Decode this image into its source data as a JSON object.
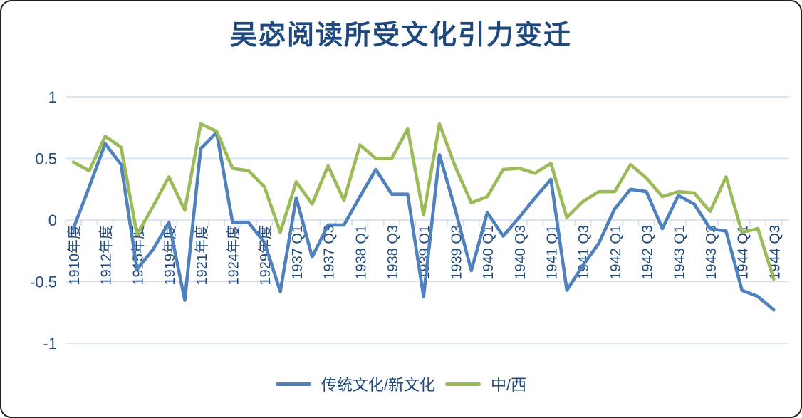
{
  "title": "吴宓阅读所受文化引力变迁",
  "colors": {
    "series1_blue": "#4F81BD",
    "series2_green": "#9BBB59",
    "text_navy": "#1F497D",
    "gridline": "#D3DEEE",
    "background": "#FFFFFF",
    "frame_border": "#1F1F1F"
  },
  "legend": {
    "position": "bottom"
  },
  "chart_data": {
    "type": "line",
    "title": "吴宓阅读所受文化引力变迁",
    "xlabel": "",
    "ylabel": "",
    "ylim": [
      -1,
      1
    ],
    "grid": true,
    "legend_position": "bottom",
    "yticks": [
      {
        "label": "1",
        "value": 1
      },
      {
        "label": "0.5",
        "value": 0.5
      },
      {
        "label": "0",
        "value": 0
      },
      {
        "label": "-0.5",
        "value": -0.5
      },
      {
        "label": "-1",
        "value": -1
      }
    ],
    "x_labels": [
      "1910年度",
      "",
      "1912年度",
      "",
      "1915年度",
      "",
      "1919年度",
      "",
      "1921年度",
      "",
      "1924年度",
      "",
      "1929年度",
      "",
      "1937 Q1",
      "",
      "1937 Q3",
      "",
      "1938 Q1",
      "",
      "1938 Q3",
      "",
      "1939 Q1",
      "",
      "1939 Q3",
      "",
      "1940 Q1",
      "",
      "1940 Q3",
      "",
      "1941 Q1",
      "",
      "1941 Q3",
      "",
      "1942 Q1",
      "",
      "1942 Q3",
      "",
      "1943 Q1",
      "",
      "1943 Q3",
      "",
      "1944 Q1",
      "",
      "1944 Q3"
    ],
    "series": [
      {
        "name": "传统文化/新文化",
        "color": "#4F81BD",
        "values": [
          -0.07,
          0.27,
          0.62,
          0.45,
          -0.4,
          -0.24,
          -0.02,
          -0.65,
          0.58,
          0.71,
          -0.02,
          -0.02,
          -0.18,
          -0.58,
          0.18,
          -0.3,
          -0.04,
          -0.04,
          0.19,
          0.41,
          0.21,
          0.21,
          -0.62,
          0.53,
          0.08,
          -0.41,
          0.06,
          -0.13,
          0.02,
          0.18,
          0.33,
          -0.57,
          -0.37,
          -0.19,
          0.09,
          0.25,
          0.23,
          -0.07,
          0.2,
          0.13,
          -0.07,
          -0.09,
          -0.57,
          -0.62,
          -0.73
        ]
      },
      {
        "name": "中/西",
        "color": "#9BBB59",
        "values": [
          0.47,
          0.4,
          0.68,
          0.59,
          -0.12,
          0.11,
          0.35,
          0.08,
          0.78,
          0.72,
          0.42,
          0.4,
          0.27,
          -0.1,
          0.31,
          0.13,
          0.44,
          0.16,
          0.61,
          0.5,
          0.5,
          0.74,
          0.04,
          0.78,
          0.43,
          0.14,
          0.19,
          0.41,
          0.42,
          0.38,
          0.46,
          0.02,
          0.15,
          0.23,
          0.23,
          0.45,
          0.34,
          0.19,
          0.23,
          0.22,
          0.07,
          0.35,
          -0.1,
          -0.07,
          -0.48
        ]
      }
    ]
  }
}
